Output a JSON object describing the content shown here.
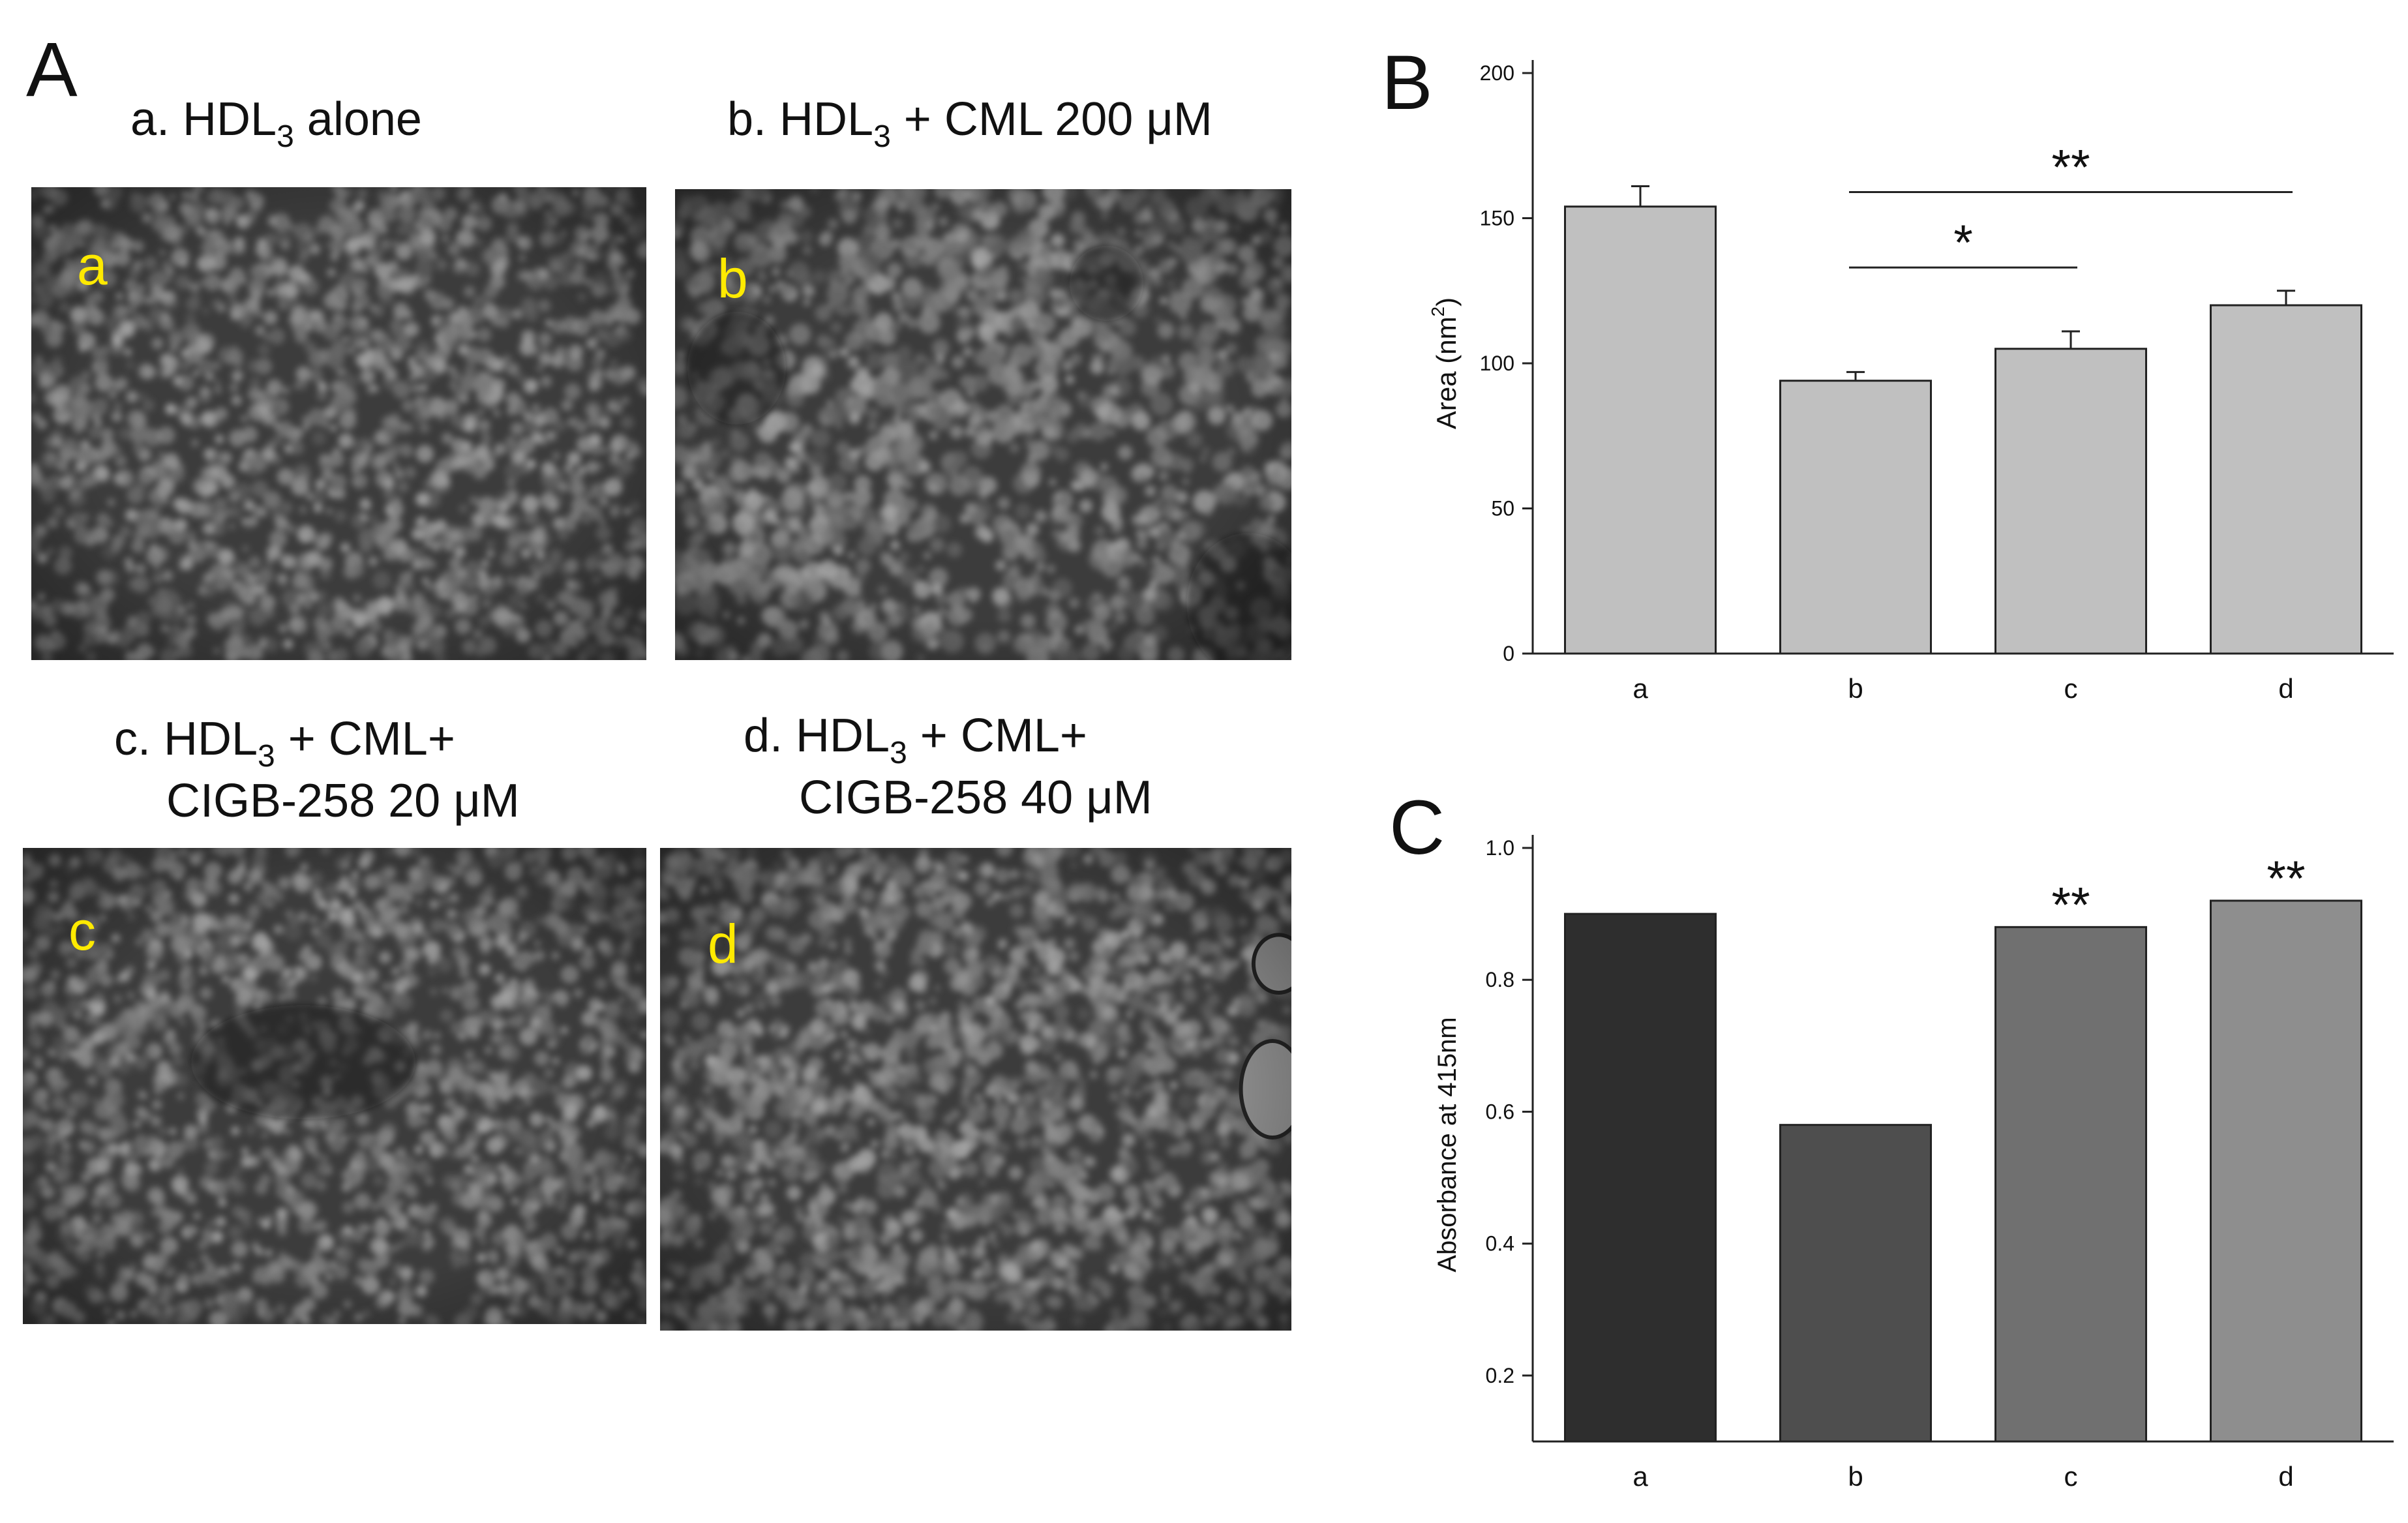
{
  "panels": {
    "A": {
      "letter": "A",
      "images": [
        {
          "id": "a",
          "caption_prefix": "a. HDL",
          "caption_sub": "3",
          "caption_suffix": " alone",
          "caption_line2": "",
          "letter": "a"
        },
        {
          "id": "b",
          "caption_prefix": "b. HDL",
          "caption_sub": "3",
          "caption_suffix": " + CML 200 μM",
          "caption_line2": "",
          "letter": "b"
        },
        {
          "id": "c",
          "caption_prefix": "c. HDL",
          "caption_sub": "3",
          "caption_suffix": " + CML+",
          "caption_line2": "CIGB-258 20 μM",
          "letter": "c"
        },
        {
          "id": "d",
          "caption_prefix": "d. HDL",
          "caption_sub": "3",
          "caption_suffix": " + CML+",
          "caption_line2": "CIGB-258 40 μM",
          "letter": "d"
        }
      ]
    },
    "B": {
      "letter": "B"
    },
    "C": {
      "letter": "C"
    }
  },
  "chart_data": [
    {
      "panel": "B",
      "type": "bar",
      "categories": [
        "a",
        "b",
        "c",
        "d"
      ],
      "values": [
        154,
        94,
        105,
        120
      ],
      "errors": [
        7,
        3,
        6,
        5
      ],
      "bar_color": "#c0c0c0",
      "ylabel_main": "Area",
      "ylabel_unit": "(nm",
      "ylabel_sup": "2",
      "ylabel_close": ")",
      "ylim": [
        0,
        200
      ],
      "yticks": [
        "0",
        "50",
        "100",
        "150",
        "200"
      ],
      "ytick_values": [
        0,
        50,
        100,
        150,
        200
      ],
      "significance": [
        {
          "from": "b",
          "to": "c",
          "label": "*"
        },
        {
          "from": "b",
          "to": "d",
          "label": "**"
        }
      ]
    },
    {
      "panel": "C",
      "type": "bar",
      "categories": [
        "a",
        "b",
        "c",
        "d"
      ],
      "values": [
        0.9,
        0.58,
        0.88,
        0.92
      ],
      "bar_colors": [
        "#2e2e2e",
        "#4e4e4e",
        "#707070",
        "#8e8e8e"
      ],
      "ylabel": "Absorbance at 415nm",
      "ylim": [
        0.1,
        1.0
      ],
      "yticks": [
        "0.2",
        "0.4",
        "0.6",
        "0.8",
        "1.0"
      ],
      "ytick_values": [
        0.2,
        0.4,
        0.6,
        0.8,
        1.0
      ],
      "annotations": [
        {
          "category": "c",
          "label": "**"
        },
        {
          "category": "d",
          "label": "**"
        }
      ]
    }
  ]
}
